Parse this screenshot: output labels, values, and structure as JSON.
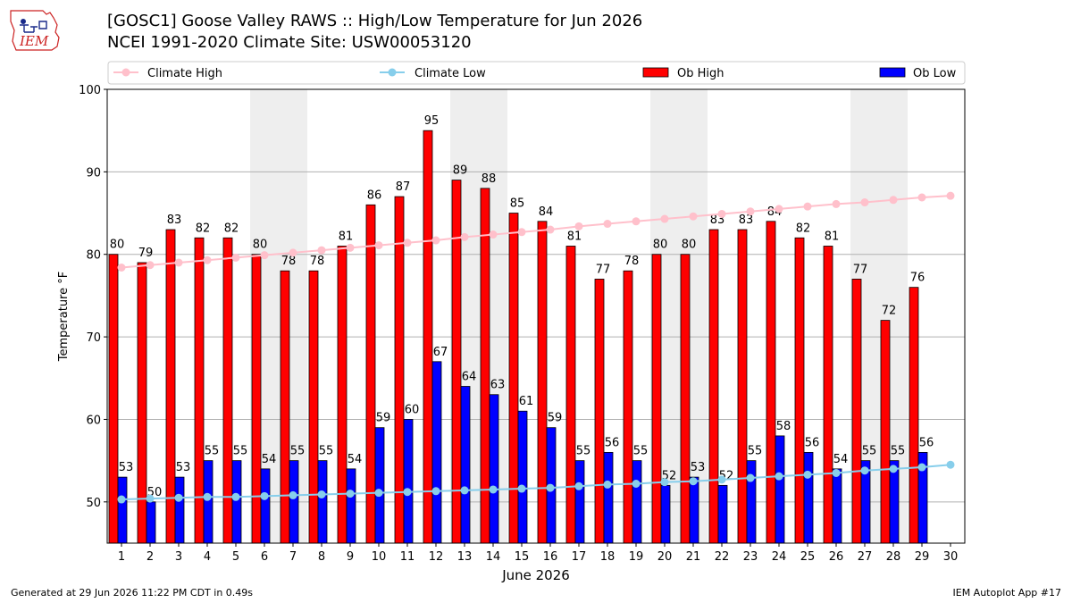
{
  "header": {
    "title_line1": "[GOSC1] Goose Valley RAWS :: High/Low Temperature for Jun 2026",
    "title_line2": "NCEI 1991-2020 Climate Site: USW00053120",
    "logo_text": "IEM"
  },
  "footer": {
    "left": "Generated at 29 Jun 2026 11:22 PM CDT in 0.49s",
    "right": "IEM Autoplot App #17"
  },
  "colors": {
    "ob_high": "#ff0000",
    "ob_low": "#0000ff",
    "climate_high": "#ffc0cb",
    "climate_low": "#87ceeb",
    "weekend_shade": "#eeeeee",
    "grid": "#b0b0b0"
  },
  "chart_data": {
    "type": "bar",
    "xlabel": "June 2026",
    "ylabel": "Temperature °F",
    "ylim": [
      45,
      100
    ],
    "yticks": [
      50,
      60,
      70,
      80,
      90,
      100
    ],
    "grid": "horizontal",
    "legend_placement": "top",
    "x": [
      1,
      2,
      3,
      4,
      5,
      6,
      7,
      8,
      9,
      10,
      11,
      12,
      13,
      14,
      15,
      16,
      17,
      18,
      19,
      20,
      21,
      22,
      23,
      24,
      25,
      26,
      27,
      28,
      29,
      30
    ],
    "shaded_days": [
      6,
      7,
      13,
      14,
      20,
      21,
      27,
      28
    ],
    "series": [
      {
        "name": "Climate High",
        "kind": "line",
        "values": [
          78.4,
          78.7,
          79.0,
          79.3,
          79.6,
          79.9,
          80.2,
          80.5,
          80.8,
          81.1,
          81.4,
          81.7,
          82.1,
          82.4,
          82.7,
          83.0,
          83.4,
          83.7,
          84.0,
          84.3,
          84.6,
          84.9,
          85.2,
          85.5,
          85.8,
          86.1,
          86.3,
          86.6,
          86.9,
          87.1
        ]
      },
      {
        "name": "Climate Low",
        "kind": "line",
        "values": [
          50.3,
          50.4,
          50.5,
          50.6,
          50.6,
          50.7,
          50.8,
          50.9,
          51.0,
          51.1,
          51.2,
          51.3,
          51.4,
          51.5,
          51.6,
          51.7,
          51.9,
          52.1,
          52.2,
          52.4,
          52.5,
          52.7,
          52.9,
          53.1,
          53.3,
          53.5,
          53.8,
          54.0,
          54.2,
          54.5
        ]
      },
      {
        "name": "Ob High",
        "kind": "bar",
        "values": [
          80,
          79,
          83,
          82,
          82,
          80,
          78,
          78,
          81,
          86,
          87,
          95,
          89,
          88,
          85,
          84,
          81,
          77,
          78,
          80,
          80,
          83,
          83,
          84,
          82,
          81,
          77,
          72,
          76,
          null
        ]
      },
      {
        "name": "Ob Low",
        "kind": "bar",
        "values": [
          53,
          50,
          53,
          55,
          55,
          54,
          55,
          55,
          54,
          59,
          60,
          67,
          64,
          63,
          61,
          59,
          55,
          56,
          55,
          52,
          53,
          52,
          55,
          58,
          56,
          54,
          55,
          55,
          56,
          null
        ]
      }
    ]
  }
}
